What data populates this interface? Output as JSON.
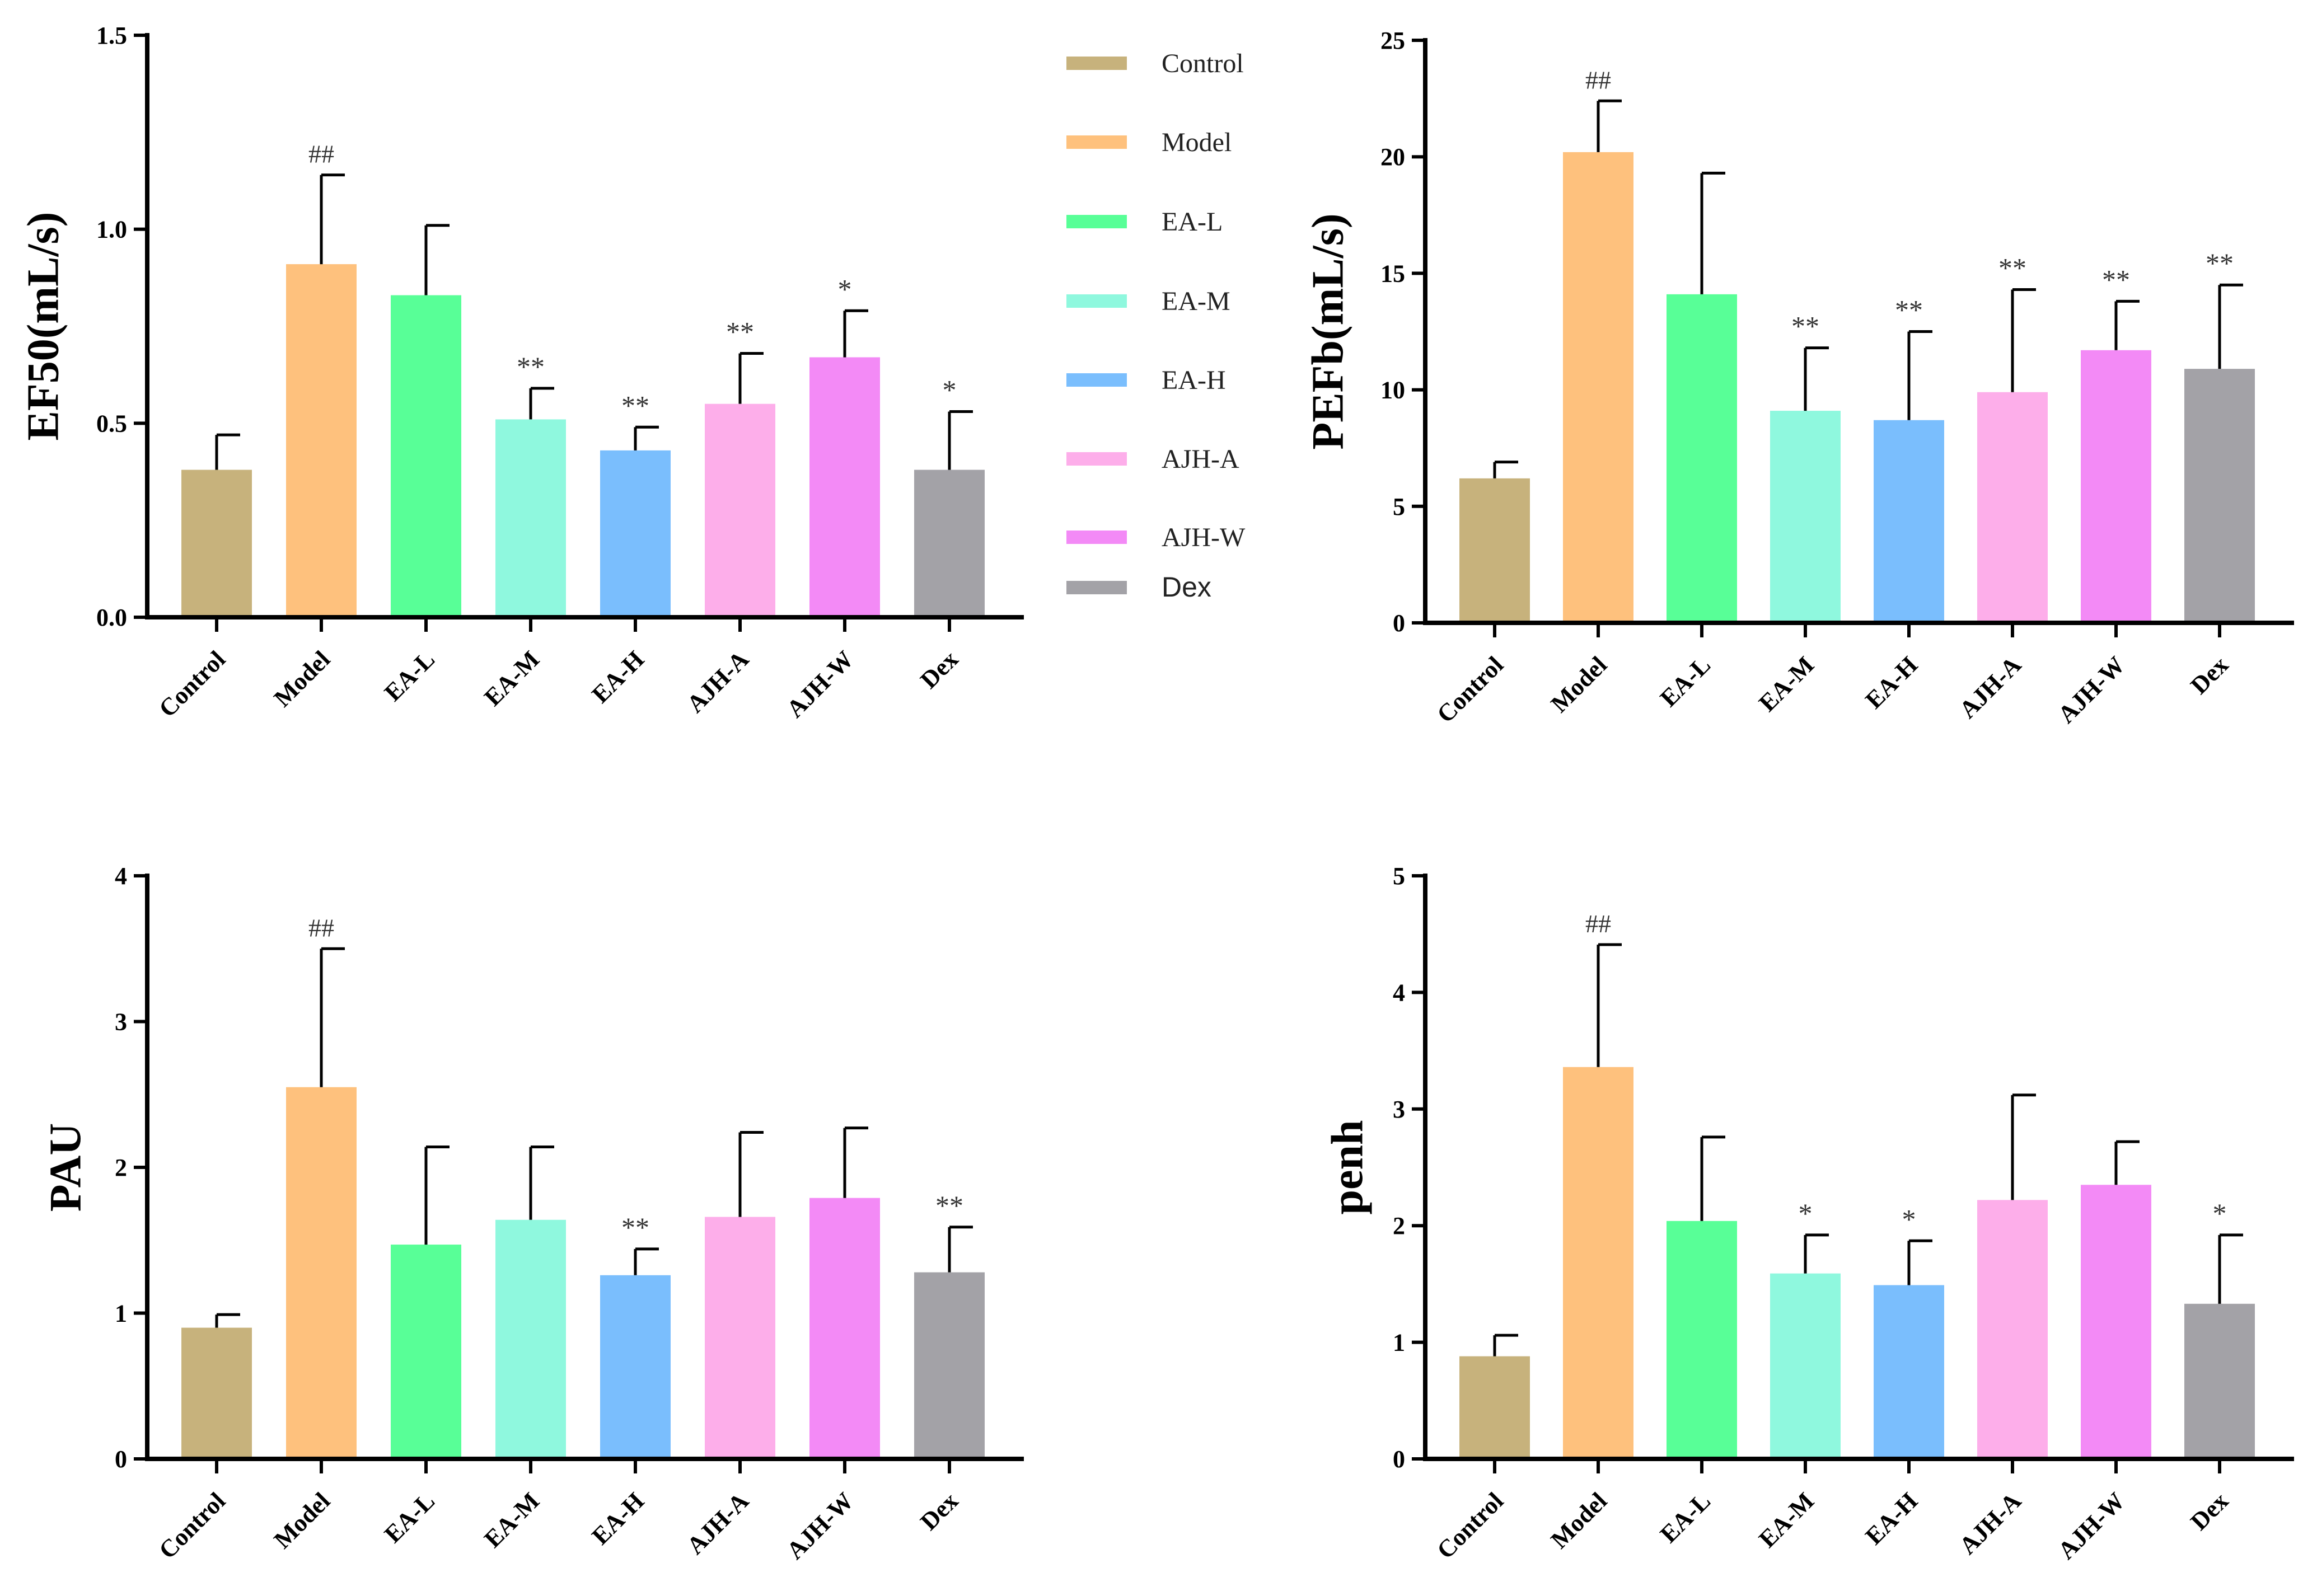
{
  "chart_data": [
    {
      "type": "bar",
      "ylabel": "EF50(mL/s)",
      "categories": [
        "Control",
        "Model",
        "EA-L",
        "EA-M",
        "EA-H",
        "AJH-A",
        "AJH-W",
        "Dex"
      ],
      "values": [
        0.38,
        0.91,
        0.83,
        0.51,
        0.43,
        0.55,
        0.67,
        0.38
      ],
      "errors": [
        0.09,
        0.23,
        0.18,
        0.08,
        0.06,
        0.13,
        0.12,
        0.15
      ],
      "annotations": [
        "",
        "##",
        "",
        "**",
        "**",
        "**",
        "*",
        "*"
      ],
      "ylim": [
        0,
        1.5
      ],
      "yticks": [
        "0.0",
        "0.5",
        "1.0",
        "1.5"
      ],
      "ytick_values": [
        0,
        0.5,
        1.0,
        1.5
      ]
    },
    {
      "type": "bar",
      "ylabel": "PEFb(mL/s)",
      "categories": [
        "Control",
        "Model",
        "EA-L",
        "EA-M",
        "EA-H",
        "AJH-A",
        "AJH-W",
        "Dex"
      ],
      "values": [
        6.2,
        20.2,
        14.1,
        9.1,
        8.7,
        9.9,
        11.7,
        10.9
      ],
      "errors": [
        0.7,
        2.2,
        5.2,
        2.7,
        3.8,
        4.4,
        2.1,
        3.6
      ],
      "annotations": [
        "",
        "##",
        "",
        "**",
        "**",
        "**",
        "**",
        "**"
      ],
      "ylim": [
        0,
        25
      ],
      "yticks": [
        "0",
        "5",
        "10",
        "15",
        "20",
        "25"
      ],
      "ytick_values": [
        0,
        5,
        10,
        15,
        20,
        25
      ]
    },
    {
      "type": "bar",
      "ylabel": "PAU",
      "categories": [
        "Control",
        "Model",
        "EA-L",
        "EA-M",
        "EA-H",
        "AJH-A",
        "AJH-W",
        "Dex"
      ],
      "values": [
        0.9,
        2.55,
        1.47,
        1.64,
        1.26,
        1.66,
        1.79,
        1.28
      ],
      "errors": [
        0.09,
        0.95,
        0.67,
        0.5,
        0.18,
        0.58,
        0.48,
        0.31
      ],
      "annotations": [
        "",
        "##",
        "",
        "",
        "**",
        "",
        "",
        "**"
      ],
      "ylim": [
        0,
        4
      ],
      "yticks": [
        "0",
        "1",
        "2",
        "3",
        "4"
      ],
      "ytick_values": [
        0,
        1,
        2,
        3,
        4
      ]
    },
    {
      "type": "bar",
      "ylabel": "penh",
      "categories": [
        "Control",
        "Model",
        "EA-L",
        "EA-M",
        "EA-H",
        "AJH-A",
        "AJH-W",
        "Dex"
      ],
      "values": [
        0.88,
        3.36,
        2.04,
        1.59,
        1.49,
        2.22,
        2.35,
        1.33
      ],
      "errors": [
        0.18,
        1.05,
        0.72,
        0.33,
        0.38,
        0.9,
        0.37,
        0.59
      ],
      "annotations": [
        "",
        "##",
        "",
        "*",
        "*",
        "",
        "",
        "*"
      ],
      "ylim": [
        0,
        5
      ],
      "yticks": [
        "0",
        "1",
        "2",
        "3",
        "4",
        "5"
      ],
      "ytick_values": [
        0,
        1,
        2,
        3,
        4,
        5
      ]
    }
  ],
  "legend": {
    "entries": [
      {
        "label": "Control",
        "color": "#c7b27c"
      },
      {
        "label": "Model",
        "color": "#fec17d"
      },
      {
        "label": "EA-L",
        "color": "#58ff97"
      },
      {
        "label": "EA-M",
        "color": "#8ff8de"
      },
      {
        "label": "EA-H",
        "color": "#7abefd"
      },
      {
        "label": "AJH-A",
        "color": "#fdaeea"
      },
      {
        "label": "AJH-W",
        "color": "#f38af6"
      },
      {
        "label": "Dex",
        "color": "#a3a2a7"
      }
    ]
  }
}
